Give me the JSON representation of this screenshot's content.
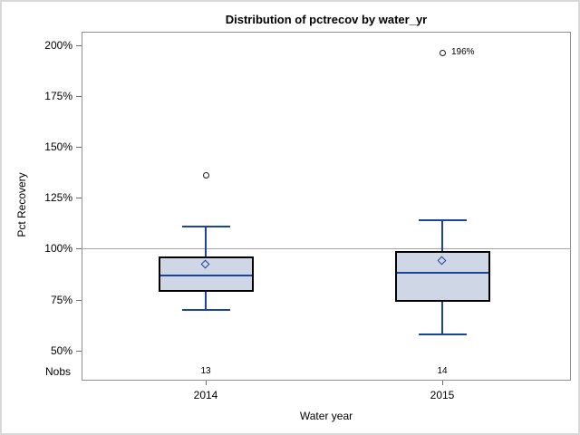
{
  "chart_data": {
    "type": "boxplot",
    "title": "Distribution of pctrecov by water_yr",
    "xlabel": "Water year",
    "ylabel": "Pct Recovery",
    "nobs_label": "Nobs",
    "legend": "none",
    "grid": "off",
    "reference_line_value": 100,
    "y_axis": {
      "range_shown": [
        50,
        200
      ],
      "ticks": [
        {
          "value": 200,
          "label": "200%"
        },
        {
          "value": 175,
          "label": "175%"
        },
        {
          "value": 150,
          "label": "150%"
        },
        {
          "value": 125,
          "label": "125%"
        },
        {
          "value": 100,
          "label": "100%"
        },
        {
          "value": 75,
          "label": "75%"
        },
        {
          "value": 50,
          "label": "50%"
        }
      ]
    },
    "categories": [
      "2014",
      "2015"
    ],
    "groups": [
      {
        "category": "2014",
        "nobs": "13",
        "whisker_low": 70,
        "q1": 79,
        "median": 87,
        "q3": 96,
        "whisker_high": 111,
        "mean": 92,
        "outliers": [
          {
            "value": 136,
            "label": ""
          }
        ]
      },
      {
        "category": "2015",
        "nobs": "14",
        "whisker_low": 58,
        "q1": 74,
        "median": 88,
        "q3": 99,
        "whisker_high": 114,
        "mean": 94,
        "outliers": [
          {
            "value": 196,
            "label": "196%"
          }
        ]
      }
    ],
    "colors": {
      "box_fill": "#cfd7e6",
      "box_border": "#000000",
      "line_blue": "#1b449c",
      "reference_line": "#a6a6a6",
      "frame": "#8f8f8f",
      "tick": "#6e6e6e",
      "outlier_stroke": "#1a1a1a",
      "text": "#000000"
    }
  }
}
